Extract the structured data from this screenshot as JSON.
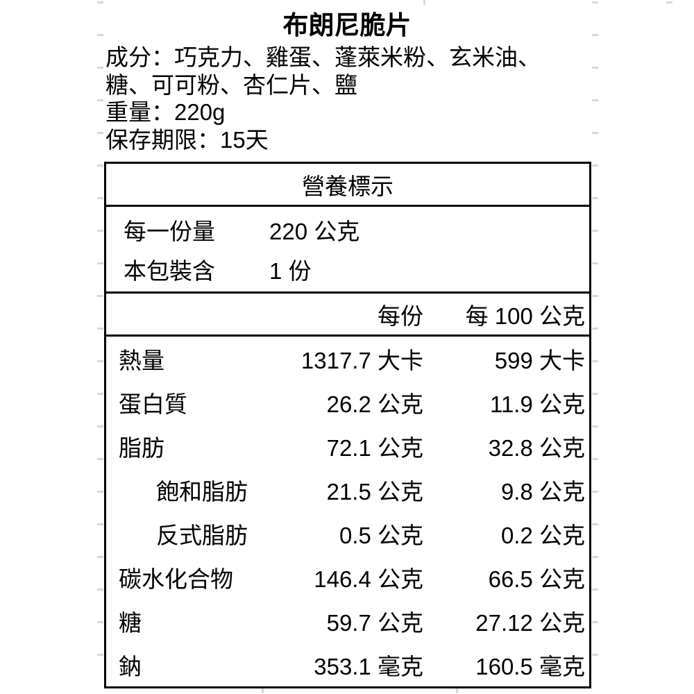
{
  "title": "布朗尼脆片",
  "info": {
    "ingredients_line1": "成分：巧克力、雞蛋、蓬萊米粉、玄米油、",
    "ingredients_line2": "糖、可可粉、杏仁片、鹽",
    "weight": "重量：220g",
    "shelf_life": "保存期限：15天"
  },
  "nutrition": {
    "table_title": "營養標示",
    "serving_rows": [
      {
        "label": "每一份量",
        "value": "220 公克"
      },
      {
        "label": "本包裝含",
        "value": "1 份"
      }
    ],
    "columns": {
      "per_serving": "每份",
      "per_100g": "每 100 公克"
    },
    "rows": [
      {
        "label": "熱量",
        "per_serving": "1317.7 大卡",
        "per_100g": "599 大卡"
      },
      {
        "label": "蛋白質",
        "per_serving": "26.2 公克",
        "per_100g": "11.9 公克"
      },
      {
        "label": "脂肪",
        "per_serving": "72.1 公克",
        "per_100g": "32.8 公克"
      },
      {
        "label": "飽和脂肪",
        "per_serving": "21.5 公克",
        "per_100g": "9.8 公克"
      },
      {
        "label": "反式脂肪",
        "per_serving": "0.5 公克",
        "per_100g": "0.2 公克"
      },
      {
        "label": "碳水化合物",
        "per_serving": "146.4 公克",
        "per_100g": "66.5 公克"
      },
      {
        "label": "糖",
        "per_serving": "59.7 公克",
        "per_100g": "27.12 公克"
      },
      {
        "label": "鈉",
        "per_serving": "353.1 毫克",
        "per_100g": "160.5 毫克"
      }
    ]
  },
  "colors": {
    "text": "#000000",
    "border": "#000000",
    "background": "#ffffff",
    "gridline_tick": "#d8d8d8"
  }
}
